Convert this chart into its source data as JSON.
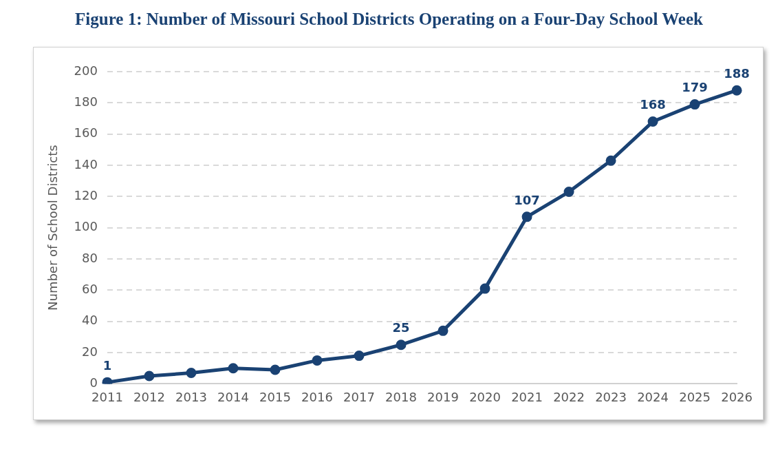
{
  "chart_data": {
    "type": "line",
    "title": "Figure 1: Number of Missouri School Districts Operating on a Four-Day School Week",
    "ylabel": "Number of School Districts",
    "categories": [
      "2011",
      "2012",
      "2013",
      "2014",
      "2015",
      "2016",
      "2017",
      "2018",
      "2019",
      "2020",
      "2021",
      "2022",
      "2023",
      "2024",
      "2025",
      "2026"
    ],
    "series": [
      {
        "color": "#1a4273",
        "values": [
          1,
          5,
          7,
          10,
          9,
          15,
          18,
          25,
          34,
          61,
          107,
          123,
          143,
          168,
          179,
          188
        ],
        "value_labels": [
          "1",
          null,
          null,
          null,
          null,
          null,
          null,
          "25",
          null,
          null,
          "107",
          null,
          null,
          "168",
          "179",
          "188"
        ]
      }
    ],
    "ylim": [
      0,
      200
    ],
    "yticks": [
      0,
      20,
      40,
      60,
      80,
      100,
      120,
      140,
      160,
      180,
      200
    ],
    "grid": "y",
    "legend": false,
    "marker": "circle",
    "line_style": "solid"
  }
}
